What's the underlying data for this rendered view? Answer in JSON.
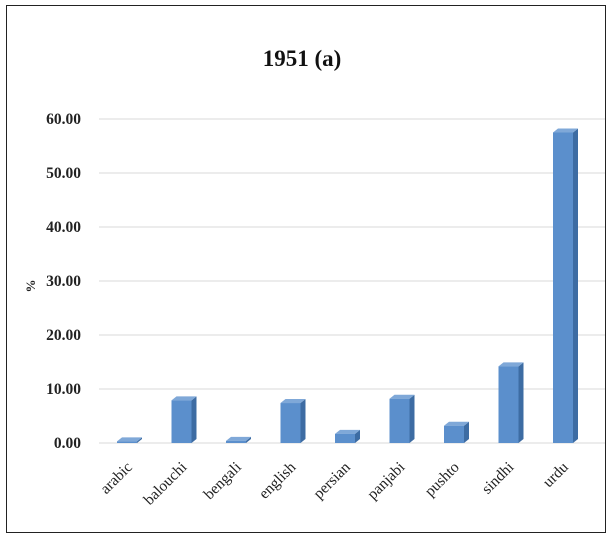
{
  "chart_data": {
    "type": "bar",
    "title": "1951 (a)",
    "ylabel": "%",
    "xlabel": "",
    "categories": [
      "arabic",
      "balouchi",
      "bengali",
      "english",
      "persian",
      "panjabi",
      "pushto",
      "sindhi",
      "urdu"
    ],
    "values": [
      0.3,
      7.9,
      0.4,
      7.4,
      1.7,
      8.2,
      3.2,
      14.2,
      57.5
    ],
    "ylim": [
      0,
      60
    ],
    "yticks": [
      "0.00",
      "10.00",
      "20.00",
      "30.00",
      "40.00",
      "50.00",
      "60.00"
    ],
    "grid": true,
    "bar_style": "3d",
    "colors": {
      "bar_front": "#5b8fcc",
      "bar_side": "#3d6ca3",
      "bar_top": "#7fa8d8"
    }
  }
}
